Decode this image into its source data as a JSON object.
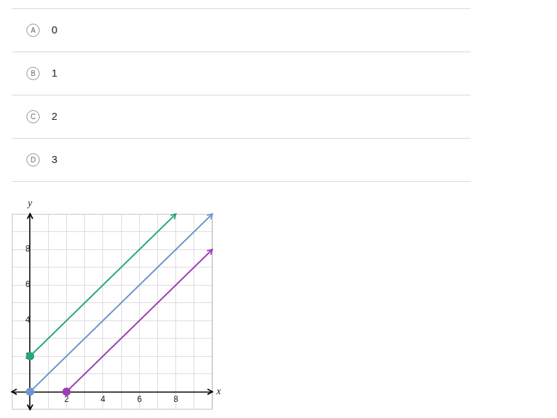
{
  "choices": [
    {
      "letter": "A",
      "text": "0"
    },
    {
      "letter": "B",
      "text": "1"
    },
    {
      "letter": "C",
      "text": "2"
    },
    {
      "letter": "D",
      "text": "3"
    }
  ],
  "chart_data": {
    "type": "line",
    "x_label": "x",
    "y_label": "y",
    "xlim": [
      -1,
      10
    ],
    "ylim": [
      -1,
      10
    ],
    "xticks": [
      2,
      4,
      6,
      8
    ],
    "yticks": [
      2,
      4,
      6,
      8
    ],
    "grid": true,
    "series": [
      {
        "color": "#28a47e",
        "marker": "circle",
        "x": [
          0,
          8
        ],
        "values": [
          2,
          10
        ]
      },
      {
        "color": "#6b96d0",
        "marker": "circle",
        "x": [
          0,
          10
        ],
        "values": [
          0,
          10
        ]
      },
      {
        "color": "#9b3fb6",
        "marker": "circle",
        "x": [
          2,
          10
        ],
        "values": [
          0,
          8
        ]
      }
    ]
  }
}
